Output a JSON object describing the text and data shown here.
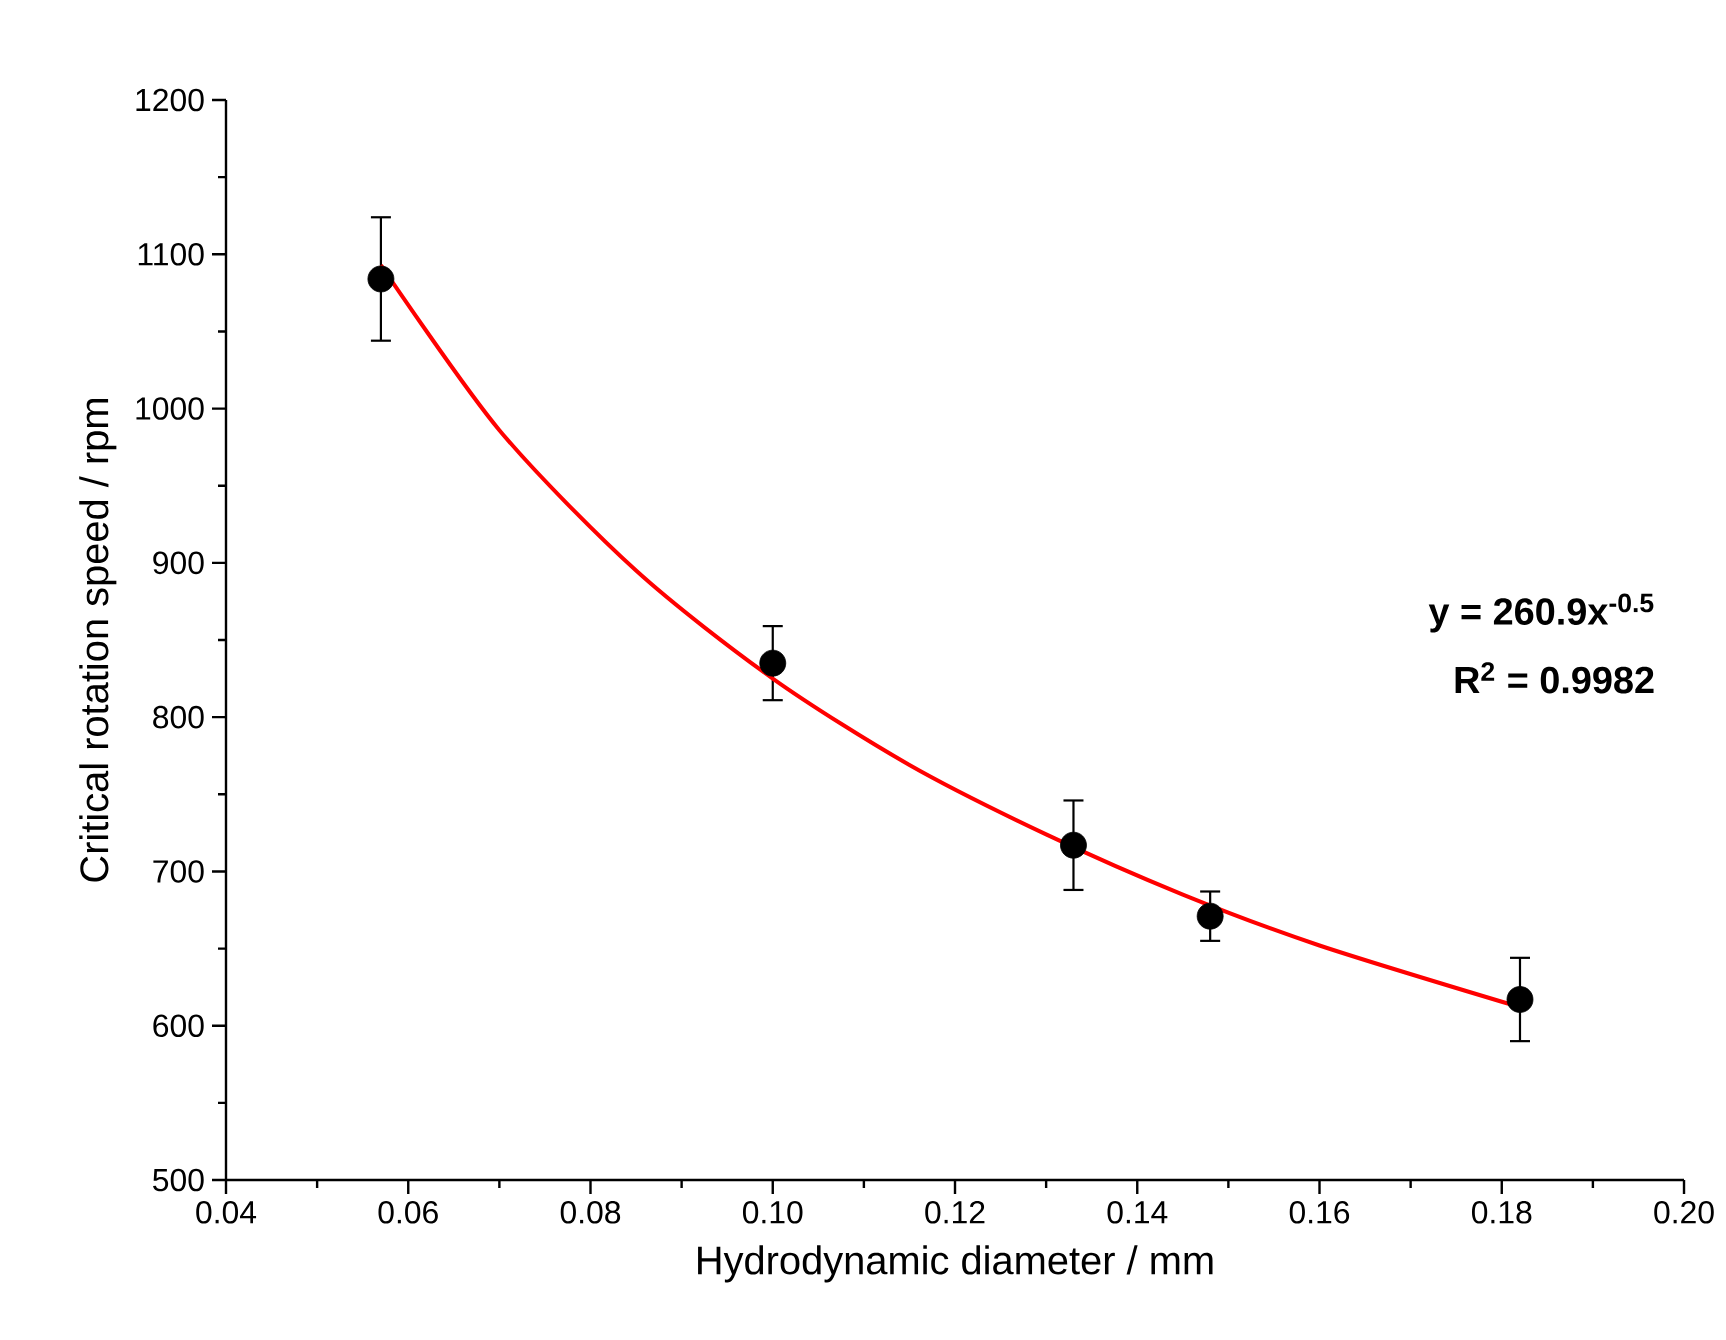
{
  "chart_data": {
    "type": "scatter",
    "xlabel": "Hydrodynamic diameter / mm",
    "ylabel": "Critical rotation speed / rpm",
    "series": [
      {
        "type": "scatter",
        "color": "#000000",
        "x": [
          0.057,
          0.1,
          0.133,
          0.148,
          0.182
        ],
        "values": [
          1084,
          835,
          717,
          671,
          617
        ],
        "errors": [
          40,
          24,
          29,
          16,
          27
        ]
      },
      {
        "type": "line",
        "color": "#ff0000",
        "marker": "none",
        "line_style": "solid",
        "x": [
          0.057,
          0.07,
          0.085,
          0.1,
          0.115,
          0.13,
          0.145,
          0.16,
          0.182
        ],
        "values": [
          1093,
          986,
          895,
          825,
          769,
          724,
          685,
          652,
          612
        ]
      }
    ],
    "marker": "circle",
    "annotations": [
      "y = 260.9x$^{-0.5}$",
      "R$^{2}$ = 0.9982"
    ],
    "xlim": [
      0.04,
      0.2
    ],
    "ylim": [
      500,
      1200
    ],
    "xticks": [
      {
        "value": 0.04,
        "label": "0.04"
      },
      {
        "value": 0.06,
        "label": "0.06"
      },
      {
        "value": 0.08,
        "label": "0.08"
      },
      {
        "value": 0.1,
        "label": "0.10"
      },
      {
        "value": 0.12,
        "label": "0.12"
      },
      {
        "value": 0.14,
        "label": "0.14"
      },
      {
        "value": 0.16,
        "label": "0.16"
      },
      {
        "value": 0.18,
        "label": "0.18"
      },
      {
        "value": 0.2,
        "label": "0.20"
      }
    ],
    "yticks": [
      500,
      600,
      700,
      800,
      900,
      1000,
      1100,
      1200
    ]
  }
}
